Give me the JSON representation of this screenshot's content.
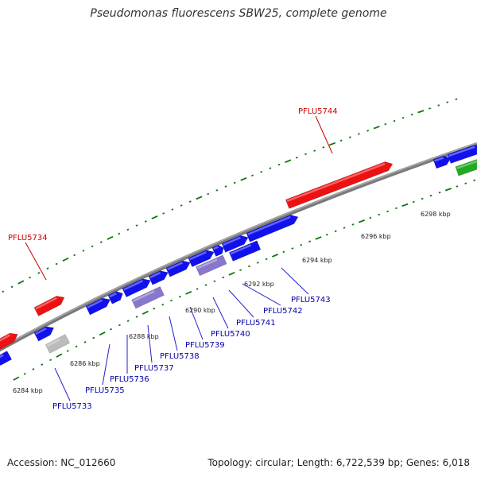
{
  "title": "Pseudomonas fluorescens SBW25, complete genome",
  "footer": {
    "accession": "Accession: NC_012660",
    "summary": "Topology: circular; Length: 6,722,539 bp; Genes: 6,018"
  },
  "colors": {
    "backbone": "#808080",
    "forward_gene": "#1111ee",
    "reverse_gene_highlight": "#ee1111",
    "rna_gene": "#22aa22",
    "pseudo_gene": "#8877cc",
    "unknown_gene": "#bbbbbb",
    "tick": "#117711",
    "label_forward": "#0000aa",
    "label_reverse": "#cc0000"
  },
  "ticks": [
    {
      "label": "6284 kbp"
    },
    {
      "label": "6286 kbp"
    },
    {
      "label": "6288 kbp"
    },
    {
      "label": "6290 kbp"
    },
    {
      "label": "6292 kbp"
    },
    {
      "label": "6294 kbp"
    },
    {
      "label": "6296 kbp"
    },
    {
      "label": "6298 kbp"
    }
  ],
  "gene_labels": [
    {
      "name": "PFLU5733",
      "strand": "forward"
    },
    {
      "name": "PFLU5734",
      "strand": "reverse"
    },
    {
      "name": "PFLU5735",
      "strand": "forward"
    },
    {
      "name": "PFLU5736",
      "strand": "forward"
    },
    {
      "name": "PFLU5737",
      "strand": "forward"
    },
    {
      "name": "PFLU5738",
      "strand": "forward"
    },
    {
      "name": "PFLU5739",
      "strand": "forward"
    },
    {
      "name": "PFLU5740",
      "strand": "forward"
    },
    {
      "name": "PFLU5741",
      "strand": "forward"
    },
    {
      "name": "PFLU5742",
      "strand": "forward"
    },
    {
      "name": "PFLU5743",
      "strand": "forward"
    },
    {
      "name": "PFLU5744",
      "strand": "reverse"
    }
  ]
}
